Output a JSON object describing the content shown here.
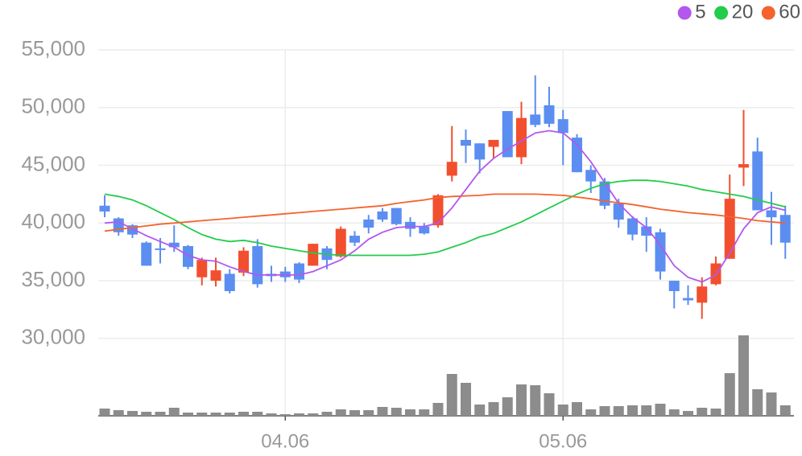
{
  "chart_data": {
    "type": "candlestick",
    "categories": [
      null,
      null,
      null,
      null,
      null,
      null,
      null,
      null,
      null,
      null,
      null,
      null,
      null,
      "04.06",
      null,
      null,
      null,
      null,
      null,
      null,
      null,
      null,
      null,
      null,
      null,
      null,
      null,
      null,
      null,
      null,
      null,
      null,
      null,
      "05.06",
      null,
      null,
      null,
      null,
      null,
      null,
      null,
      null,
      null,
      null,
      null,
      null,
      null,
      null,
      null,
      null
    ],
    "open": [
      41500,
      40400,
      39800,
      38300,
      37800,
      38300,
      38000,
      35300,
      35000,
      35600,
      35700,
      38000,
      35600,
      35800,
      36500,
      36300,
      37800,
      37100,
      38900,
      40300,
      41000,
      41300,
      40100,
      39700,
      39800,
      44100,
      47200,
      46900,
      46600,
      49700,
      45700,
      49400,
      50200,
      49000,
      47400,
      44600,
      43600,
      41700,
      40400,
      39700,
      39200,
      35000,
      33500,
      33100,
      34700,
      36900,
      44800,
      46200,
      41100,
      40700
    ],
    "high": [
      42400,
      40500,
      39900,
      38400,
      38700,
      39800,
      38100,
      37000,
      37000,
      36000,
      37900,
      38600,
      36300,
      36200,
      36600,
      38200,
      38000,
      39700,
      39300,
      40700,
      41300,
      41300,
      40500,
      40000,
      42500,
      48400,
      48100,
      46900,
      47200,
      49700,
      50500,
      52800,
      51800,
      49800,
      47700,
      45000,
      43900,
      42100,
      40600,
      40500,
      39500,
      35000,
      34600,
      35300,
      37100,
      44200,
      49800,
      47400,
      42700,
      41500
    ],
    "low": [
      40500,
      38900,
      38700,
      36300,
      36500,
      37500,
      36000,
      34600,
      34500,
      33900,
      35400,
      34400,
      34900,
      34900,
      34800,
      36300,
      36000,
      37000,
      38000,
      39100,
      40100,
      39800,
      38800,
      39000,
      39600,
      43600,
      45200,
      44300,
      45600,
      45700,
      45100,
      48300,
      48300,
      45000,
      44400,
      42600,
      41200,
      39600,
      38500,
      37500,
      35100,
      32600,
      32900,
      31700,
      34600,
      36900,
      43200,
      41100,
      38100,
      36900
    ],
    "close": [
      41000,
      39200,
      39000,
      36300,
      37700,
      37900,
      36200,
      36800,
      35900,
      34100,
      37600,
      34700,
      35400,
      35300,
      35100,
      38200,
      36800,
      39500,
      38300,
      39600,
      40300,
      39900,
      39500,
      39100,
      42400,
      45300,
      46700,
      45500,
      47200,
      45700,
      49100,
      48500,
      48600,
      47800,
      44400,
      43600,
      41500,
      40300,
      39000,
      38900,
      35800,
      34100,
      33300,
      34500,
      36500,
      42100,
      45100,
      41100,
      40500,
      38300
    ],
    "up_color": "#f24f2e",
    "down_color": "#5b8ef0",
    "series": [
      {
        "name": "5",
        "color": "#b357ee",
        "values": [
          40000,
          40100,
          39500,
          38900,
          38400,
          37900,
          37200,
          36800,
          36700,
          36200,
          35800,
          35500,
          35500,
          35500,
          35500,
          35800,
          36300,
          36800,
          37600,
          38600,
          39200,
          39600,
          39700,
          39700,
          40000,
          41300,
          42900,
          44500,
          45600,
          46400,
          47100,
          47800,
          48000,
          47800,
          46800,
          45300,
          43500,
          41700,
          40500,
          39600,
          38100,
          36300,
          35300,
          34900,
          35500,
          37400,
          39500,
          40900,
          41400,
          41100
        ]
      },
      {
        "name": "20",
        "color": "#23cc4a",
        "values": [
          42500,
          42300,
          42000,
          41500,
          40900,
          40300,
          39600,
          39000,
          38600,
          38400,
          38500,
          38300,
          38000,
          37800,
          37600,
          37400,
          37300,
          37200,
          37200,
          37200,
          37200,
          37200,
          37200,
          37300,
          37500,
          37900,
          38300,
          38800,
          39100,
          39600,
          40100,
          40700,
          41300,
          41900,
          42500,
          43000,
          43400,
          43600,
          43700,
          43700,
          43600,
          43400,
          43200,
          42900,
          42700,
          42500,
          42300,
          42000,
          41700,
          41400
        ]
      },
      {
        "name": "60",
        "color": "#f5622d",
        "values": [
          39300,
          39450,
          39600,
          39750,
          39900,
          40000,
          40100,
          40200,
          40300,
          40400,
          40500,
          40600,
          40700,
          40800,
          40900,
          41000,
          41100,
          41200,
          41300,
          41400,
          41500,
          41700,
          41850,
          42000,
          42200,
          42300,
          42350,
          42400,
          42500,
          42500,
          42500,
          42500,
          42450,
          42400,
          42250,
          42100,
          41900,
          41750,
          41600,
          41400,
          41200,
          41050,
          40900,
          40800,
          40700,
          40550,
          40400,
          40200,
          40100,
          40000
        ]
      }
    ],
    "volume": [
      9,
      7,
      6,
      5,
      5,
      10,
      4,
      4,
      4,
      4,
      5,
      5,
      3,
      2,
      3,
      3,
      5,
      8,
      7,
      7,
      11,
      10,
      8,
      8,
      16,
      52,
      41,
      14,
      17,
      23,
      39,
      38,
      28,
      14,
      17,
      8,
      12,
      12,
      13,
      13,
      15,
      8,
      6,
      10,
      9,
      53,
      100,
      33,
      29,
      13
    ],
    "volume_color": "#8c8c8c",
    "volume_lim": [
      0,
      100
    ],
    "ylim": [
      23300,
      59320
    ],
    "yticks": [
      {
        "value": 30000,
        "label": "30,000"
      },
      {
        "value": 35000,
        "label": "35,000"
      },
      {
        "value": 40000,
        "label": "40,000"
      },
      {
        "value": 45000,
        "label": "45,000"
      },
      {
        "value": 50000,
        "label": "50,000"
      },
      {
        "value": 55000,
        "label": "55,000"
      }
    ],
    "grid": true,
    "legend": "top-right"
  }
}
